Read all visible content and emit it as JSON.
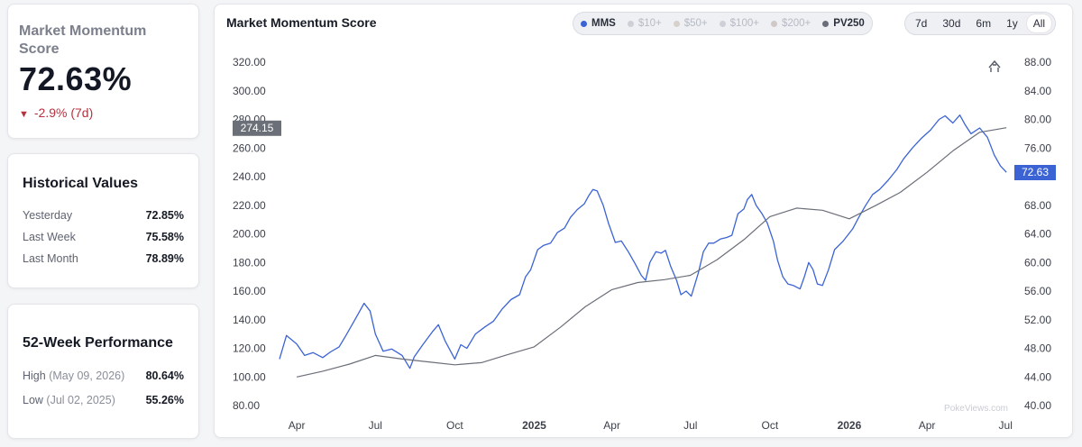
{
  "score": {
    "title": "Market Momentum Score",
    "value": "72.63%",
    "change": "-2.9% (7d)"
  },
  "historical": {
    "title": "Historical Values",
    "rows": [
      {
        "label": "Yesterday",
        "value": "72.85%"
      },
      {
        "label": "Last Week",
        "value": "75.58%"
      },
      {
        "label": "Last Month",
        "value": "78.89%"
      }
    ]
  },
  "performance": {
    "title": "52-Week Performance",
    "high": {
      "label": "High",
      "date": "(May 09, 2026)",
      "value": "80.64%"
    },
    "low": {
      "label": "Low",
      "date": "(Jul 02, 2025)",
      "value": "55.26%"
    }
  },
  "chart_card": {
    "title": "Market Momentum Score",
    "series_toggles": [
      {
        "label": "MMS",
        "active": true,
        "color": "#3b63d4"
      },
      {
        "label": "$10+",
        "active": false,
        "color": "#cdd0d6"
      },
      {
        "label": "$50+",
        "active": false,
        "color": "#d8d1cb"
      },
      {
        "label": "$100+",
        "active": false,
        "color": "#cdd0d6"
      },
      {
        "label": "$200+",
        "active": false,
        "color": "#cfc8c6"
      },
      {
        "label": "PV250",
        "active": true,
        "color": "#6a6e78"
      }
    ],
    "ranges": [
      "7d",
      "30d",
      "6m",
      "1y",
      "All"
    ],
    "active_range": "All",
    "watermark": "PokeViews.com"
  },
  "chart_data": {
    "type": "line",
    "title": "Market Momentum Score",
    "x_ticks": [
      {
        "label": "Apr",
        "date": "2024-04-01"
      },
      {
        "label": "Jul",
        "date": "2024-07-01"
      },
      {
        "label": "Oct",
        "date": "2024-10-01"
      },
      {
        "label": "2025",
        "date": "2025-01-01",
        "year": true
      },
      {
        "label": "Apr",
        "date": "2025-04-01"
      },
      {
        "label": "Jul",
        "date": "2025-07-01"
      },
      {
        "label": "Oct",
        "date": "2025-10-01"
      },
      {
        "label": "2026",
        "date": "2026-01-01",
        "year": true
      },
      {
        "label": "Apr",
        "date": "2026-04-01"
      },
      {
        "label": "Jul",
        "date": "2026-07-01"
      }
    ],
    "x_range": [
      "2024-03-12",
      "2026-07-06"
    ],
    "left_axis": {
      "range": [
        80,
        320
      ],
      "ticks": [
        "80.00",
        "100.00",
        "120.00",
        "140.00",
        "160.00",
        "180.00",
        "200.00",
        "220.00",
        "240.00",
        "260.00",
        "280.00",
        "300.00",
        "320.00"
      ],
      "current_label": "274.15",
      "current_value": 274.15
    },
    "right_axis": {
      "range": [
        40,
        88
      ],
      "ticks": [
        "40.00",
        "44.00",
        "48.00",
        "52.00",
        "56.00",
        "60.00",
        "64.00",
        "68.00",
        "72.00",
        "76.00",
        "80.00",
        "84.00",
        "88.00"
      ],
      "current_label": "72.63",
      "current_value": 72.63
    },
    "series": [
      {
        "name": "MMS",
        "axis": "right",
        "color": "#3b63d4",
        "points": [
          [
            "2024-03-12",
            46.5
          ],
          [
            "2024-03-20",
            49.8
          ],
          [
            "2024-04-01",
            48.6
          ],
          [
            "2024-04-10",
            47.0
          ],
          [
            "2024-04-20",
            47.4
          ],
          [
            "2024-05-01",
            46.7
          ],
          [
            "2024-05-10",
            47.5
          ],
          [
            "2024-05-20",
            48.2
          ],
          [
            "2024-05-28",
            49.8
          ],
          [
            "2024-06-05",
            51.5
          ],
          [
            "2024-06-12",
            53.0
          ],
          [
            "2024-06-18",
            54.3
          ],
          [
            "2024-06-25",
            53.2
          ],
          [
            "2024-07-01",
            50.0
          ],
          [
            "2024-07-10",
            47.6
          ],
          [
            "2024-07-20",
            47.9
          ],
          [
            "2024-08-01",
            47.0
          ],
          [
            "2024-08-10",
            45.2
          ],
          [
            "2024-08-15",
            46.8
          ],
          [
            "2024-08-25",
            48.5
          ],
          [
            "2024-09-05",
            50.3
          ],
          [
            "2024-09-12",
            51.3
          ],
          [
            "2024-09-20",
            49.0
          ],
          [
            "2024-10-01",
            46.5
          ],
          [
            "2024-10-08",
            48.5
          ],
          [
            "2024-10-15",
            48.0
          ],
          [
            "2024-10-25",
            50.0
          ],
          [
            "2024-11-05",
            51.0
          ],
          [
            "2024-11-15",
            51.8
          ],
          [
            "2024-11-25",
            53.5
          ],
          [
            "2024-12-05",
            54.8
          ],
          [
            "2024-12-15",
            55.5
          ],
          [
            "2024-12-22",
            58.0
          ],
          [
            "2024-12-28",
            59.0
          ],
          [
            "2025-01-05",
            61.8
          ],
          [
            "2025-01-12",
            62.4
          ],
          [
            "2025-01-20",
            62.7
          ],
          [
            "2025-01-28",
            64.2
          ],
          [
            "2025-02-05",
            64.8
          ],
          [
            "2025-02-12",
            66.3
          ],
          [
            "2025-02-20",
            67.4
          ],
          [
            "2025-02-28",
            68.2
          ],
          [
            "2025-03-05",
            69.3
          ],
          [
            "2025-03-10",
            70.2
          ],
          [
            "2025-03-15",
            70.0
          ],
          [
            "2025-03-22",
            68.0
          ],
          [
            "2025-03-28",
            65.5
          ],
          [
            "2025-04-05",
            62.8
          ],
          [
            "2025-04-12",
            63.0
          ],
          [
            "2025-04-20",
            61.5
          ],
          [
            "2025-04-28",
            59.8
          ],
          [
            "2025-05-05",
            58.2
          ],
          [
            "2025-05-10",
            57.5
          ],
          [
            "2025-05-15",
            60.0
          ],
          [
            "2025-05-22",
            61.5
          ],
          [
            "2025-05-28",
            61.3
          ],
          [
            "2025-06-02",
            61.7
          ],
          [
            "2025-06-08",
            59.5
          ],
          [
            "2025-06-15",
            57.5
          ],
          [
            "2025-06-20",
            55.5
          ],
          [
            "2025-06-26",
            56.0
          ],
          [
            "2025-07-02",
            55.3
          ],
          [
            "2025-07-10",
            58.5
          ],
          [
            "2025-07-16",
            61.5
          ],
          [
            "2025-07-22",
            62.7
          ],
          [
            "2025-07-28",
            62.7
          ],
          [
            "2025-08-05",
            63.3
          ],
          [
            "2025-08-12",
            63.5
          ],
          [
            "2025-08-18",
            63.8
          ],
          [
            "2025-08-25",
            66.8
          ],
          [
            "2025-09-01",
            67.5
          ],
          [
            "2025-09-05",
            68.8
          ],
          [
            "2025-09-10",
            69.5
          ],
          [
            "2025-09-15",
            68.0
          ],
          [
            "2025-09-22",
            66.8
          ],
          [
            "2025-09-28",
            65.5
          ],
          [
            "2025-10-05",
            63.0
          ],
          [
            "2025-10-10",
            60.3
          ],
          [
            "2025-10-16",
            58.0
          ],
          [
            "2025-10-22",
            57.0
          ],
          [
            "2025-10-28",
            56.8
          ],
          [
            "2025-11-05",
            56.3
          ],
          [
            "2025-11-10",
            58.0
          ],
          [
            "2025-11-15",
            60.0
          ],
          [
            "2025-11-20",
            59.0
          ],
          [
            "2025-11-25",
            57.0
          ],
          [
            "2025-12-01",
            56.8
          ],
          [
            "2025-12-08",
            59.0
          ],
          [
            "2025-12-15",
            61.8
          ],
          [
            "2025-12-25",
            63.0
          ],
          [
            "2026-01-05",
            64.7
          ],
          [
            "2026-01-12",
            66.3
          ],
          [
            "2026-01-20",
            68.0
          ],
          [
            "2026-01-28",
            69.5
          ],
          [
            "2026-02-05",
            70.2
          ],
          [
            "2026-02-15",
            71.5
          ],
          [
            "2026-02-25",
            73.0
          ],
          [
            "2026-03-05",
            74.5
          ],
          [
            "2026-03-15",
            76.0
          ],
          [
            "2026-03-25",
            77.3
          ],
          [
            "2026-04-05",
            78.5
          ],
          [
            "2026-04-15",
            80.0
          ],
          [
            "2026-04-22",
            80.5
          ],
          [
            "2026-05-01",
            79.5
          ],
          [
            "2026-05-09",
            80.6
          ],
          [
            "2026-05-15",
            79.3
          ],
          [
            "2026-05-22",
            78.0
          ],
          [
            "2026-06-01",
            78.8
          ],
          [
            "2026-06-10",
            77.5
          ],
          [
            "2026-06-18",
            75.0
          ],
          [
            "2026-06-25",
            73.5
          ],
          [
            "2026-07-02",
            72.6
          ]
        ]
      },
      {
        "name": "PV250",
        "axis": "left",
        "color": "#6a6e78",
        "points": [
          [
            "2024-04-01",
            100.0
          ],
          [
            "2024-05-01",
            104.0
          ],
          [
            "2024-06-01",
            109.0
          ],
          [
            "2024-07-01",
            115.0
          ],
          [
            "2024-08-01",
            112.5
          ],
          [
            "2024-09-01",
            110.5
          ],
          [
            "2024-10-01",
            108.5
          ],
          [
            "2024-11-01",
            110.0
          ],
          [
            "2024-12-01",
            115.5
          ],
          [
            "2025-01-01",
            121.0
          ],
          [
            "2025-02-01",
            135.0
          ],
          [
            "2025-03-01",
            149.0
          ],
          [
            "2025-04-01",
            161.0
          ],
          [
            "2025-05-01",
            166.0
          ],
          [
            "2025-06-01",
            168.0
          ],
          [
            "2025-07-01",
            171.0
          ],
          [
            "2025-08-01",
            182.0
          ],
          [
            "2025-09-01",
            196.0
          ],
          [
            "2025-10-01",
            212.0
          ],
          [
            "2025-11-01",
            218.0
          ],
          [
            "2025-12-01",
            216.5
          ],
          [
            "2026-01-01",
            210.5
          ],
          [
            "2026-02-01",
            220.0
          ],
          [
            "2026-03-01",
            229.0
          ],
          [
            "2026-04-01",
            243.0
          ],
          [
            "2026-05-01",
            258.0
          ],
          [
            "2026-06-01",
            271.0
          ],
          [
            "2026-07-02",
            274.2
          ]
        ]
      }
    ],
    "legend": "top-center"
  }
}
